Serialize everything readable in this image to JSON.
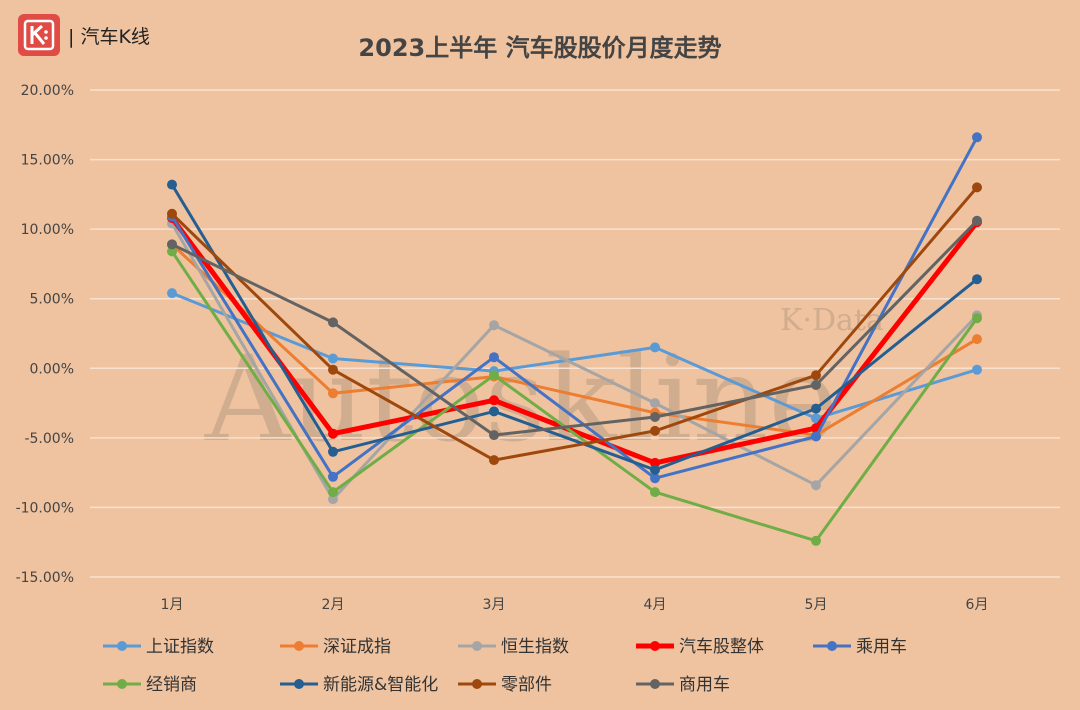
{
  "brand": {
    "name": "| 汽车K线",
    "logo_icon": "k-logo-icon",
    "logo_color": "#E04B45"
  },
  "watermark": {
    "main": "Autoskline",
    "sub": "K·Data"
  },
  "chart_data": {
    "type": "line",
    "title": "2023上半年 汽车股股价月度走势",
    "categories": [
      "1月",
      "2月",
      "3月",
      "4月",
      "5月",
      "6月"
    ],
    "y_ticks": [
      "20.00%",
      "15.00%",
      "10.00%",
      "5.00%",
      "0.00%",
      "-5.00%",
      "-10.00%",
      "-15.00%"
    ],
    "ylim": [
      -15,
      20
    ],
    "grid": true,
    "legend_position": "bottom",
    "series": [
      {
        "name": "上证指数",
        "color": "#5B9BD5",
        "width": 3,
        "values": [
          5.4,
          0.7,
          -0.2,
          1.5,
          -3.6,
          -0.1
        ]
      },
      {
        "name": "深证成指",
        "color": "#ED7D31",
        "width": 3,
        "values": [
          8.9,
          -1.8,
          -0.6,
          -3.2,
          -4.8,
          2.1
        ]
      },
      {
        "name": "恒生指数",
        "color": "#A5A5A5",
        "width": 3,
        "values": [
          10.4,
          -9.4,
          3.1,
          -2.5,
          -8.4,
          3.8
        ]
      },
      {
        "name": "汽车股整体",
        "color": "#FF0000",
        "width": 5,
        "values": [
          10.8,
          -4.7,
          -2.3,
          -6.8,
          -4.3,
          10.5
        ]
      },
      {
        "name": "乘用车",
        "color": "#4472C4",
        "width": 3,
        "values": [
          10.9,
          -7.8,
          0.8,
          -7.9,
          -4.9,
          16.6
        ]
      },
      {
        "name": "经销商",
        "color": "#70AD47",
        "width": 3,
        "values": [
          8.4,
          -8.9,
          -0.5,
          -8.9,
          -12.4,
          3.6
        ]
      },
      {
        "name": "新能源&智能化",
        "color": "#255E91",
        "width": 3,
        "values": [
          13.2,
          -6.0,
          -3.1,
          -7.3,
          -2.9,
          6.4
        ]
      },
      {
        "name": "零部件",
        "color": "#9E480E",
        "width": 3,
        "values": [
          11.1,
          -0.1,
          -6.6,
          -4.5,
          -0.5,
          13.0
        ]
      },
      {
        "name": "商用车",
        "color": "#636363",
        "width": 3,
        "values": [
          8.9,
          3.3,
          -4.8,
          -3.5,
          -1.2,
          10.6
        ]
      }
    ]
  }
}
